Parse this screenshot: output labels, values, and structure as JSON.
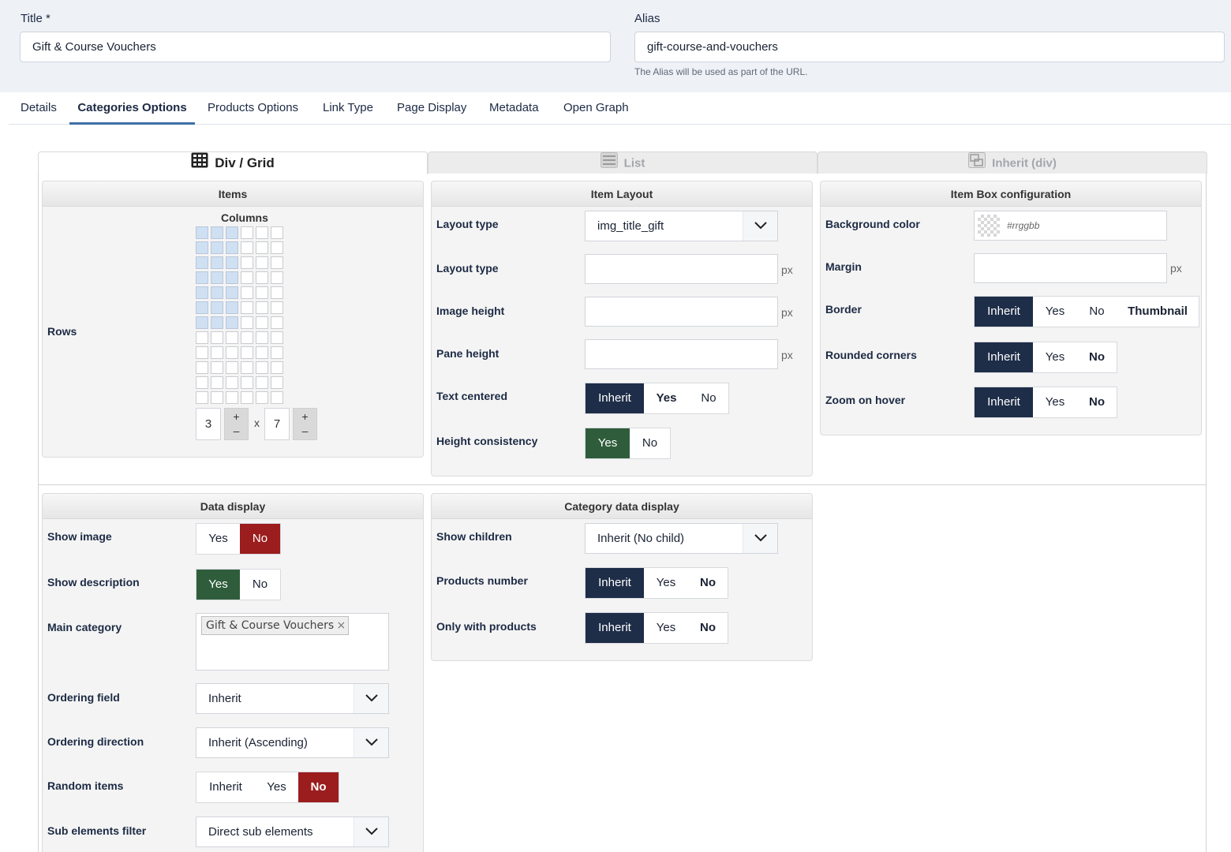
{
  "header": {
    "title_label": "Title *",
    "title_value": "Gift & Course Vouchers",
    "alias_label": "Alias",
    "alias_value": "gift-course-and-vouchers",
    "alias_hint": "The Alias will be used as part of the URL."
  },
  "tabs": [
    {
      "label": "Details"
    },
    {
      "label": "Categories Options",
      "active": true
    },
    {
      "label": "Products Options"
    },
    {
      "label": "Link Type"
    },
    {
      "label": "Page Display"
    },
    {
      "label": "Metadata"
    },
    {
      "label": "Open Graph"
    }
  ],
  "display_tabs": [
    {
      "label": "Div / Grid",
      "icon": "grid-icon",
      "active": true
    },
    {
      "label": "List",
      "icon": "list-icon"
    },
    {
      "label": "Inherit (div)",
      "icon": "inherit-icon"
    }
  ],
  "items_panel": {
    "title": "Items",
    "columns_label": "Columns",
    "rows_label": "Rows",
    "columns_value": "3",
    "rows_value": "7",
    "times": "x",
    "plus": "+",
    "minus": "–"
  },
  "layout_panel": {
    "title": "Item Layout",
    "layout_type_label": "Layout type",
    "layout_type_value": "img_title_gift",
    "layout_type2_label": "Layout type",
    "image_height_label": "Image height",
    "pane_height_label": "Pane height",
    "unit": "px",
    "text_centered_label": "Text centered",
    "height_consistency_label": "Height consistency"
  },
  "box_panel": {
    "title": "Item Box configuration",
    "bg_color_label": "Background color",
    "bg_color_placeholder": "#rrggbb",
    "margin_label": "Margin",
    "border_label": "Border",
    "rounded_label": "Rounded corners",
    "zoom_label": "Zoom on hover"
  },
  "data_panel": {
    "title": "Data display",
    "show_image_label": "Show image",
    "show_description_label": "Show description",
    "main_category_label": "Main category",
    "main_category_tag": "Gift & Course Vouchers",
    "remove_glyph": "×",
    "ordering_field_label": "Ordering field",
    "ordering_field_value": "Inherit",
    "ordering_direction_label": "Ordering direction",
    "ordering_direction_value": "Inherit (Ascending)",
    "random_label": "Random items",
    "sub_filter_label": "Sub elements filter",
    "sub_filter_value": "Direct sub elements"
  },
  "category_panel": {
    "title": "Category data display",
    "show_children_label": "Show children",
    "show_children_value": "Inherit (No child)",
    "products_number_label": "Products number",
    "only_with_products_label": "Only with products"
  },
  "options": {
    "inherit": "Inherit",
    "yes": "Yes",
    "no": "No",
    "thumbnail": "Thumbnail"
  },
  "colors": {
    "selected_dark": "#1e2d48",
    "selected_yes": "#2f5d3b",
    "selected_no": "#9b1d1d",
    "tab_accent": "#3f6ea8"
  }
}
